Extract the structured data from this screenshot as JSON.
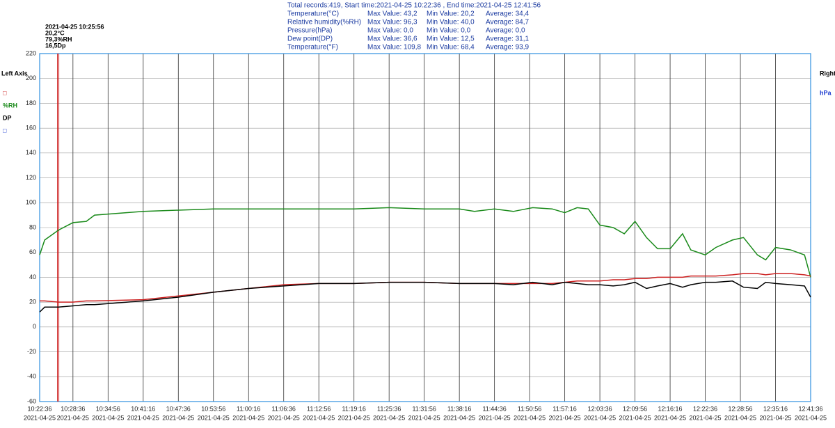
{
  "header": {
    "summary": "Total records:419,  Start time:2021-04-25 10:22:36 ,  End time:2021-04-25 12:41:56",
    "rows": [
      [
        "Temperature(°C)",
        "Max Value:  43,2",
        "Min Value:  20,2",
        "Average:  34,4"
      ],
      [
        "Relative humidity(%RH)",
        "Max Value:  96,3",
        "Min Value:  40,0",
        "Average:  84,7"
      ],
      [
        "Pressure(hPa)",
        "Max Value:  0,0",
        "Min Value:  0,0",
        "Average:  0,0"
      ],
      [
        "Dew point(DP)",
        "Max Value:  36,6",
        "Min Value:  12,5",
        "Average:  31,1"
      ],
      [
        "Temperature(°F)",
        "Max Value:  109,8",
        "Min Value:  68,4",
        "Average:  93,9"
      ]
    ]
  },
  "cursor": {
    "time": "2021-04-25 10:25:56",
    "temperature": "20,2°C",
    "humidity": "79,3%RH",
    "dew_point": "16,5Dp"
  },
  "left_axis": {
    "title": "Left Axis",
    "items": [
      {
        "text": "□",
        "color": "#cc1f1f"
      },
      {
        "text": "%RH",
        "color": "#1a8a1a"
      },
      {
        "text": "DP",
        "color": "#000000"
      },
      {
        "text": "□",
        "color": "#1a3ad0"
      }
    ]
  },
  "right_axis": {
    "title": "Right Axis",
    "items": [
      {
        "text": "hPa",
        "color": "#1a3ad0"
      }
    ]
  },
  "chart_data": {
    "type": "line",
    "x": [
      "10:22:36",
      "10:23:30",
      "10:26:00",
      "10:28:36",
      "10:31:00",
      "10:32:30",
      "10:41:16",
      "10:47:36",
      "10:53:56",
      "11:00:16",
      "11:06:36",
      "11:12:56",
      "11:19:16",
      "11:25:36",
      "11:31:56",
      "11:38:16",
      "11:41:00",
      "11:44:36",
      "11:48:00",
      "11:51:30",
      "11:55:00",
      "11:57:16",
      "11:59:30",
      "12:01:30",
      "12:03:36",
      "12:06:00",
      "12:08:00",
      "12:09:56",
      "12:12:00",
      "12:14:00",
      "12:16:16",
      "12:18:30",
      "12:20:00",
      "12:22:36",
      "12:24:30",
      "12:27:30",
      "12:29:30",
      "12:32:00",
      "12:33:30",
      "12:35:16",
      "12:38:00",
      "12:40:30",
      "12:41:36"
    ],
    "series": [
      {
        "color": "#1a8a1a",
        "values": [
          58,
          70,
          78,
          84,
          85,
          90,
          93,
          94,
          95,
          95,
          95,
          95,
          95,
          96,
          95,
          95,
          93,
          95,
          93,
          96,
          95,
          92,
          96,
          95,
          82,
          80,
          75,
          85,
          72,
          63,
          63,
          75,
          62,
          58,
          64,
          70,
          72,
          58,
          54,
          64,
          62,
          58,
          40
        ]
      },
      {
        "color": "#cc1f1f",
        "values": [
          21,
          21,
          20,
          20,
          21,
          21,
          22,
          25,
          28,
          31,
          34,
          35,
          35,
          36,
          36,
          35,
          35,
          35,
          35,
          35,
          35,
          36,
          37,
          37,
          37,
          38,
          38,
          39,
          39,
          40,
          40,
          40,
          41,
          41,
          41,
          42,
          43,
          43,
          42,
          43,
          43,
          42,
          41
        ]
      },
      {
        "color": "#000000",
        "values": [
          12,
          16,
          16,
          17,
          18,
          18,
          21,
          24,
          28,
          31,
          33,
          35,
          35,
          36,
          36,
          35,
          35,
          35,
          34,
          36,
          34,
          36,
          35,
          34,
          34,
          33,
          34,
          36,
          31,
          33,
          35,
          32,
          34,
          36,
          36,
          37,
          32,
          31,
          36,
          35,
          34,
          33,
          24
        ]
      }
    ],
    "xlim": [
      "10:22:36",
      "12:41:36"
    ],
    "xticks": [
      "10:22:36",
      "10:28:36",
      "10:34:56",
      "10:41:16",
      "10:47:36",
      "10:53:56",
      "11:00:16",
      "11:06:36",
      "11:12:56",
      "11:19:16",
      "11:25:36",
      "11:31:56",
      "11:38:16",
      "11:44:36",
      "11:50:56",
      "11:57:16",
      "12:03:36",
      "12:09:56",
      "12:16:16",
      "12:22:36",
      "12:28:56",
      "12:35:16",
      "12:41:36"
    ],
    "xtick_dates": [
      "2021-04-25",
      "2021-04-25",
      "2021-04-25",
      "2021-04-25",
      "2021-04-25",
      "2021-04-25",
      "2021-04-25",
      "2021-04-25",
      "2021-04-25",
      "2021-04-25",
      "2021-04-25",
      "2021-04-25",
      "2021-04-25",
      "2021-04-25",
      "2021-04-25",
      "2021-04-25",
      "2021-04-25",
      "2021-04-25",
      "2021-04-25",
      "2021-04-25",
      "2021-04-25",
      "2021-04-25",
      "2021-04-25"
    ],
    "ylim": [
      -60,
      220
    ],
    "yticks": [
      -60,
      -40,
      -20,
      0,
      20,
      40,
      60,
      80,
      100,
      120,
      140,
      160,
      180,
      200,
      220
    ],
    "grid": true
  }
}
